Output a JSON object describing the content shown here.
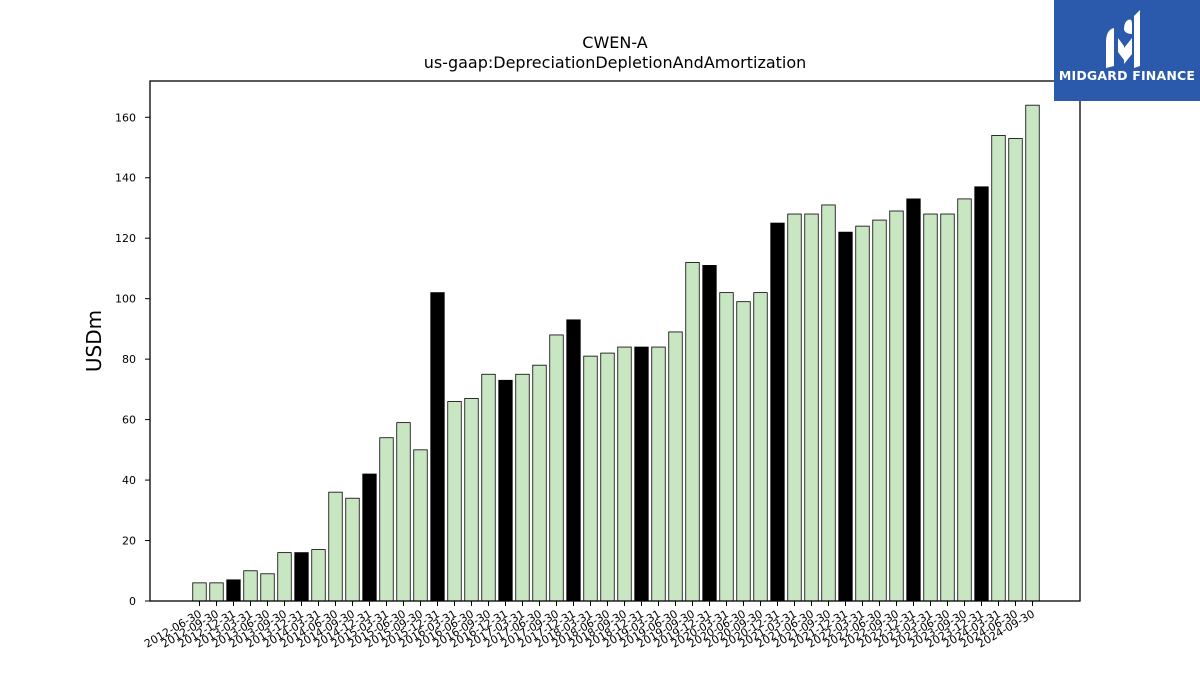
{
  "chart_data": {
    "type": "bar",
    "title": "CWEN-A",
    "subtitle": "us-gaap:DepreciationDepletionAndAmortization",
    "xlabel": "",
    "ylabel": "USDm",
    "ylim": [
      0,
      172
    ],
    "yticks": [
      0,
      20,
      40,
      60,
      80,
      100,
      120,
      140,
      160
    ],
    "grid": false,
    "colors": {
      "quarter": "#c8e6c2",
      "year_end": "#000000",
      "edge": "#000000"
    },
    "categories": [
      "2012-06-30",
      "2012-09-30",
      "2012-12-31",
      "2013-03-31",
      "2013-06-30",
      "2013-09-30",
      "2013-12-31",
      "2014-03-31",
      "2014-06-30",
      "2014-09-30",
      "2014-12-31",
      "2015-03-31",
      "2015-06-30",
      "2015-09-30",
      "2015-12-31",
      "2016-03-31",
      "2016-06-30",
      "2016-09-30",
      "2016-12-31",
      "2017-03-31",
      "2017-06-30",
      "2017-09-30",
      "2017-12-31",
      "2018-03-31",
      "2018-06-30",
      "2018-09-30",
      "2018-12-31",
      "2019-03-31",
      "2019-06-30",
      "2019-09-30",
      "2019-12-31",
      "2020-03-31",
      "2020-06-30",
      "2020-09-30",
      "2020-12-31",
      "2021-03-31",
      "2021-06-30",
      "2021-09-30",
      "2021-12-31",
      "2022-03-31",
      "2022-06-30",
      "2022-09-30",
      "2022-12-31",
      "2023-03-31",
      "2023-06-30",
      "2023-09-30",
      "2023-12-31",
      "2024-03-31",
      "2024-06-30",
      "2024-09-30"
    ],
    "values": [
      6,
      6,
      7,
      10,
      9,
      16,
      16,
      17,
      36,
      34,
      42,
      54,
      59,
      50,
      102,
      66,
      67,
      75,
      73,
      75,
      78,
      88,
      93,
      81,
      82,
      84,
      84,
      84,
      89,
      112,
      111,
      102,
      99,
      102,
      125,
      128,
      128,
      131,
      122,
      124,
      126,
      129,
      133,
      128,
      128,
      133,
      137,
      154,
      153,
      164
    ],
    "year_end": [
      false,
      false,
      true,
      false,
      false,
      false,
      true,
      false,
      false,
      false,
      true,
      false,
      false,
      false,
      true,
      false,
      false,
      false,
      true,
      false,
      false,
      false,
      true,
      false,
      false,
      false,
      true,
      false,
      false,
      false,
      true,
      false,
      false,
      false,
      true,
      false,
      false,
      false,
      true,
      false,
      false,
      false,
      true,
      false,
      false,
      false,
      true,
      false,
      false,
      false
    ]
  },
  "logo": {
    "text": "MIDGARD FINANCE"
  }
}
